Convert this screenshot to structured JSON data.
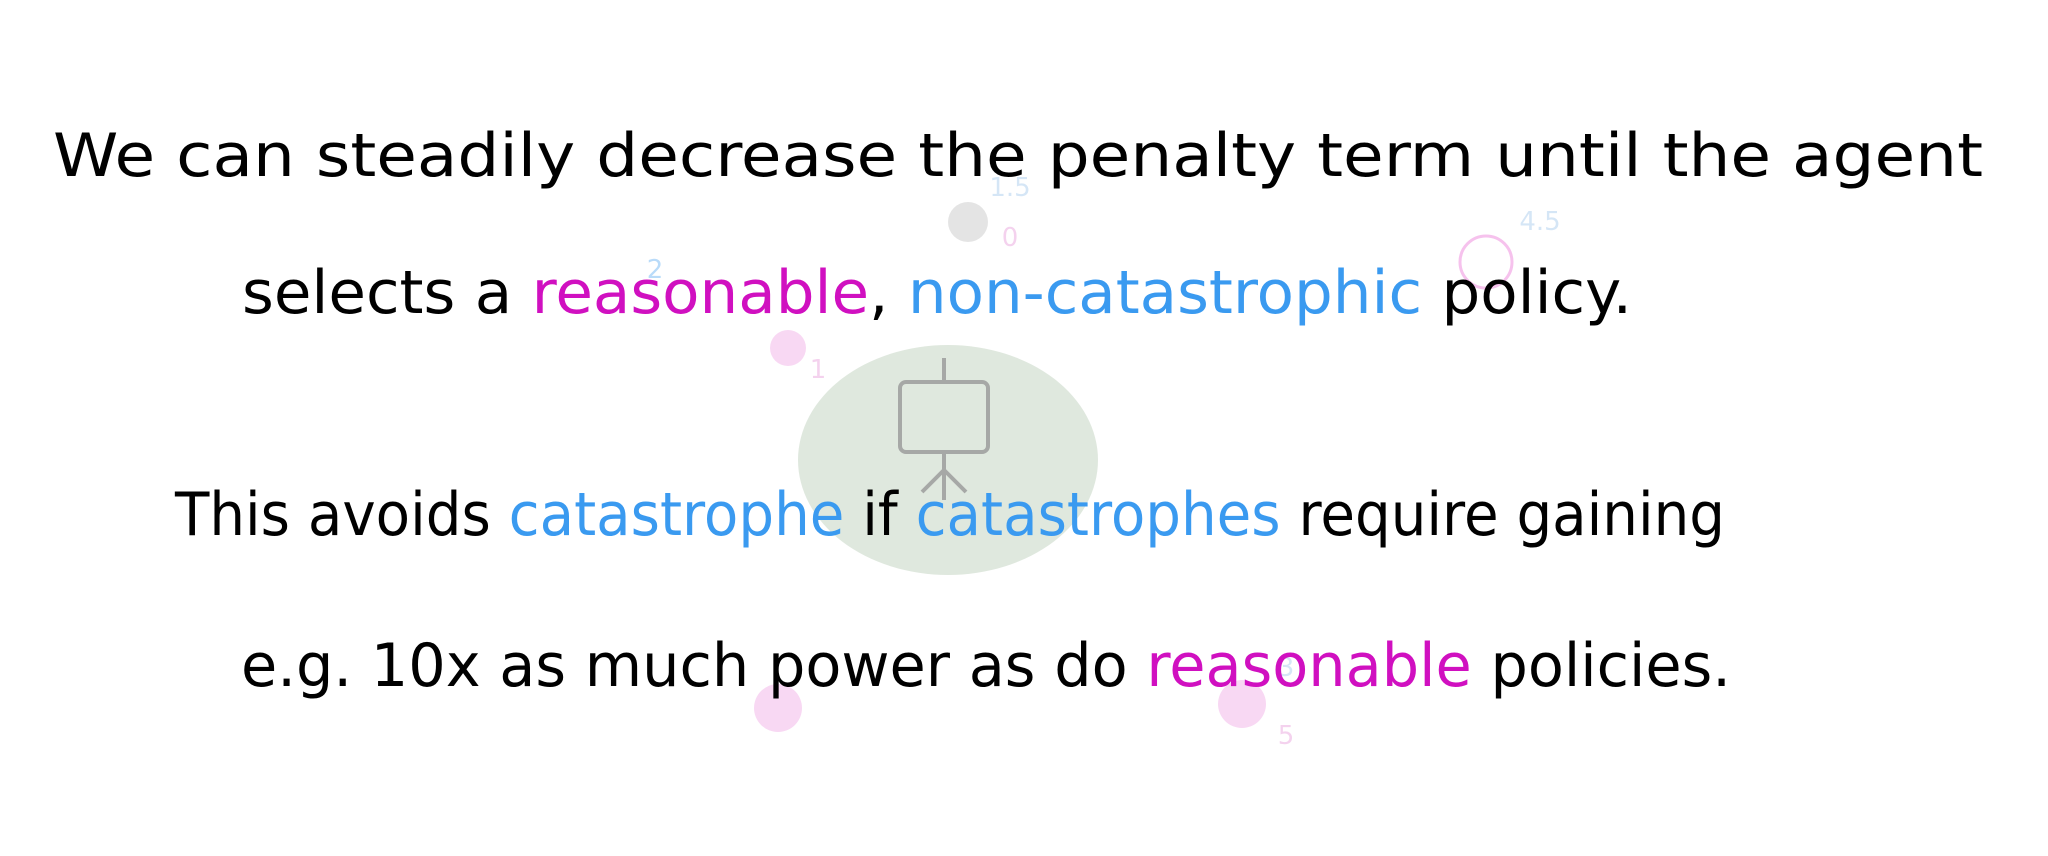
{
  "lines": [
    {
      "segments": [
        {
          "text": "We can steadily decrease the penalty term until the agent",
          "color": "#000000"
        }
      ]
    },
    {
      "segments": [
        {
          "text": "selects a ",
          "color": "#000000"
        },
        {
          "text": "reasonable",
          "color": "#d010c0"
        },
        {
          "text": ", ",
          "color": "#000000"
        },
        {
          "text": "non-catastrophic",
          "color": "#3a9af0"
        },
        {
          "text": " policy.",
          "color": "#000000"
        }
      ]
    },
    {
      "segments": [
        {
          "text": "This avoids ",
          "color": "#000000"
        },
        {
          "text": "catastrophe",
          "color": "#3a9af0"
        },
        {
          "text": " if ",
          "color": "#000000"
        },
        {
          "text": "catastrophes",
          "color": "#3a9af0"
        },
        {
          "text": " require gaining",
          "color": "#000000"
        }
      ]
    },
    {
      "segments": [
        {
          "text": "e.g. 10x as much power as do ",
          "color": "#000000"
        },
        {
          "text": "reasonable",
          "color": "#d010c0"
        },
        {
          "text": " policies.",
          "color": "#000000"
        }
      ]
    }
  ],
  "faint_labels": [
    {
      "text": "1.5",
      "color": "#8ab8e8"
    },
    {
      "text": "0",
      "color": "#e080d0"
    },
    {
      "text": "4.5",
      "color": "#8ab8e8"
    },
    {
      "text": "2",
      "color": "#3a9af0"
    },
    {
      "text": "1",
      "color": "#e080d0"
    },
    {
      "text": "3",
      "color": "#8ab8e8"
    },
    {
      "text": "5",
      "color": "#e080d0"
    }
  ]
}
